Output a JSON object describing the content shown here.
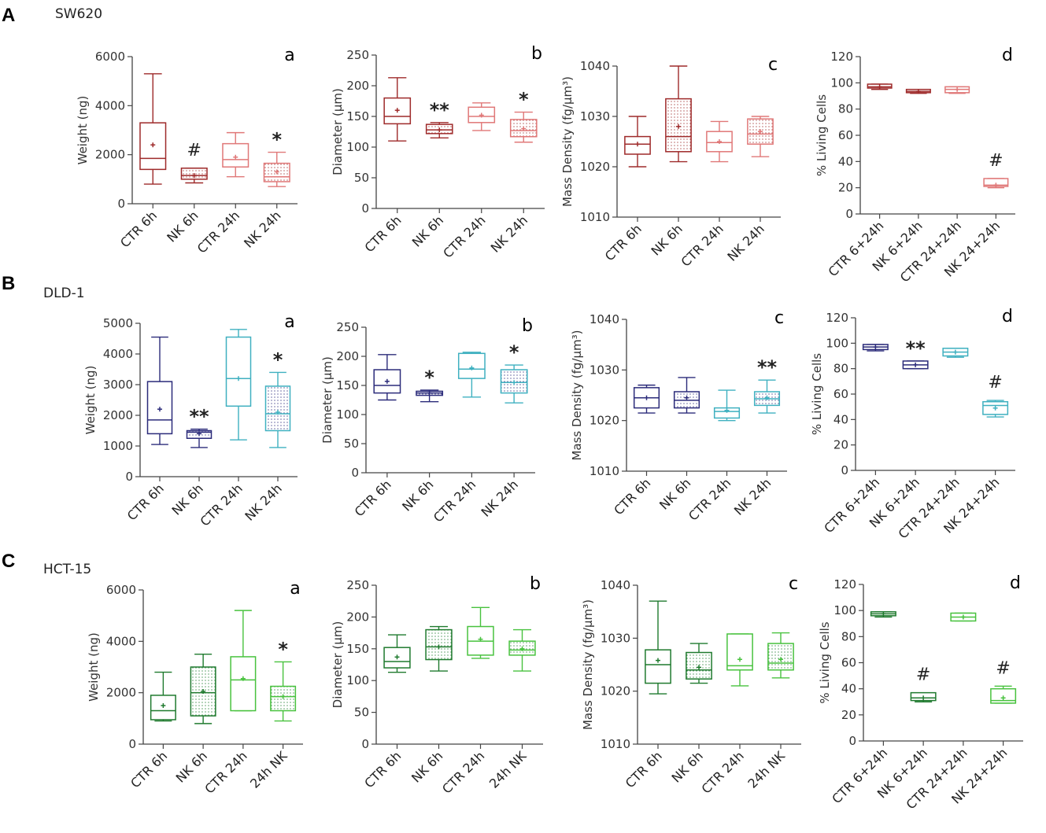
{
  "figure": {
    "rows": [
      {
        "letter": "A",
        "title": "SW620"
      },
      {
        "letter": "B",
        "title": "DLD-1"
      },
      {
        "letter": "C",
        "title": "HCT-15"
      }
    ]
  },
  "colors": {
    "A": [
      "#9e2a2a",
      "#9e2a2a",
      "#e07878",
      "#e07878"
    ],
    "B": [
      "#2b2b7a",
      "#2b2b7a",
      "#3fb0c0",
      "#3fb0c0"
    ],
    "C": [
      "#1f7a2e",
      "#1f7a2e",
      "#48c23e",
      "#48c23e"
    ]
  },
  "chart_data": [
    {
      "id": "A-a",
      "row": "A",
      "letter": "a",
      "type": "box",
      "ylabel": "Weight (ng)",
      "ylim": [
        0,
        6000
      ],
      "yticks": [
        0,
        2000,
        4000,
        6000
      ],
      "categories": [
        "CTR 6h",
        "NK 6h",
        "CTR 24h",
        "NK 24h"
      ],
      "dotted": [
        false,
        true,
        false,
        true
      ],
      "boxes": [
        {
          "min": 800,
          "q1": 1400,
          "median": 1850,
          "q3": 3300,
          "max": 5300,
          "mean": 2400
        },
        {
          "min": 850,
          "q1": 1000,
          "median": 1150,
          "q3": 1450,
          "max": 1450,
          "mean": 1150
        },
        {
          "min": 1100,
          "q1": 1500,
          "median": 1800,
          "q3": 2450,
          "max": 2900,
          "mean": 1900
        },
        {
          "min": 700,
          "q1": 900,
          "median": 1100,
          "q3": 1650,
          "max": 2100,
          "mean": 1300
        }
      ],
      "annotations": [
        "",
        "#",
        "",
        "*"
      ]
    },
    {
      "id": "A-b",
      "row": "A",
      "letter": "b",
      "type": "box",
      "ylabel": "Diameter (μm)",
      "ylim": [
        0,
        250
      ],
      "yticks": [
        0,
        50,
        100,
        150,
        200,
        250
      ],
      "categories": [
        "CTR 6h",
        "NK 6h",
        "CTR 24h",
        "NK 24h"
      ],
      "dotted": [
        false,
        true,
        false,
        true
      ],
      "boxes": [
        {
          "min": 110,
          "q1": 138,
          "median": 150,
          "q3": 180,
          "max": 213,
          "mean": 160
        },
        {
          "min": 115,
          "q1": 122,
          "median": 128,
          "q3": 137,
          "max": 140,
          "mean": 128
        },
        {
          "min": 127,
          "q1": 140,
          "median": 150,
          "q3": 165,
          "max": 172,
          "mean": 152
        },
        {
          "min": 108,
          "q1": 117,
          "median": 127,
          "q3": 145,
          "max": 157,
          "mean": 130
        }
      ],
      "annotations": [
        "",
        "**",
        "",
        "*"
      ]
    },
    {
      "id": "A-c",
      "row": "A",
      "letter": "c",
      "type": "box",
      "ylabel": "Mass Density (fg/μm³)",
      "ylim": [
        1010,
        1040
      ],
      "yticks": [
        1010,
        1020,
        1030,
        1040
      ],
      "categories": [
        "CTR 6h",
        "NK 6h",
        "CTR 24h",
        "NK 24h"
      ],
      "dotted": [
        false,
        true,
        false,
        true
      ],
      "boxes": [
        {
          "min": 1020,
          "q1": 1022.5,
          "median": 1024.5,
          "q3": 1026,
          "max": 1030,
          "mean": 1024.5
        },
        {
          "min": 1021,
          "q1": 1023,
          "median": 1026,
          "q3": 1033.5,
          "max": 1040,
          "mean": 1028
        },
        {
          "min": 1021,
          "q1": 1023,
          "median": 1024.8,
          "q3": 1027,
          "max": 1029,
          "mean": 1025
        },
        {
          "min": 1022,
          "q1": 1024.5,
          "median": 1026.5,
          "q3": 1029.5,
          "max": 1030,
          "mean": 1027
        }
      ],
      "annotations": [
        "",
        "",
        "",
        ""
      ]
    },
    {
      "id": "A-d",
      "row": "A",
      "letter": "d",
      "type": "box",
      "ylabel": "% Living Cells",
      "ylim": [
        0,
        120
      ],
      "yticks": [
        0,
        20,
        40,
        60,
        80,
        100,
        120
      ],
      "categories": [
        "CTR 6+24h",
        "NK 6+24h",
        "CTR 24+24h",
        "NK 24+24h"
      ],
      "dotted": [
        false,
        false,
        false,
        false
      ],
      "boxes": [
        {
          "min": 95,
          "q1": 96,
          "median": 97,
          "q3": 99,
          "max": 99,
          "mean": 97
        },
        {
          "min": 92,
          "q1": 92.5,
          "median": 93.5,
          "q3": 95,
          "max": 95,
          "mean": 93.5
        },
        {
          "min": 92,
          "q1": 92.5,
          "median": 95,
          "q3": 97,
          "max": 97,
          "mean": 95
        },
        {
          "min": 20,
          "q1": 21,
          "median": 22,
          "q3": 27,
          "max": 27,
          "mean": 22
        }
      ],
      "annotations": [
        "",
        "",
        "",
        "#"
      ]
    },
    {
      "id": "B-a",
      "row": "B",
      "letter": "a",
      "type": "box",
      "ylabel": "Weight (ng)",
      "ylim": [
        0,
        5000
      ],
      "yticks": [
        0,
        1000,
        2000,
        3000,
        4000,
        5000
      ],
      "categories": [
        "CTR 6h",
        "NK 6h",
        "CTR 24h",
        "NK 24h"
      ],
      "dotted": [
        false,
        true,
        false,
        true
      ],
      "boxes": [
        {
          "min": 1050,
          "q1": 1400,
          "median": 1850,
          "q3": 3100,
          "max": 4550,
          "mean": 2200
        },
        {
          "min": 950,
          "q1": 1250,
          "median": 1450,
          "q3": 1500,
          "max": 1550,
          "mean": 1400
        },
        {
          "min": 1200,
          "q1": 2300,
          "median": 3200,
          "q3": 4550,
          "max": 4800,
          "mean": 3200
        },
        {
          "min": 950,
          "q1": 1500,
          "median": 2050,
          "q3": 2950,
          "max": 3400,
          "mean": 2100
        }
      ],
      "annotations": [
        "",
        "**",
        "",
        "*"
      ]
    },
    {
      "id": "B-b",
      "row": "B",
      "letter": "b",
      "type": "box",
      "ylabel": "Diameter (μm)",
      "ylim": [
        0,
        250
      ],
      "yticks": [
        0,
        50,
        100,
        150,
        200,
        250
      ],
      "categories": [
        "CTR 6h",
        "NK 6h",
        "CTR 24h",
        "NK 24h"
      ],
      "dotted": [
        false,
        true,
        false,
        true
      ],
      "boxes": [
        {
          "min": 125,
          "q1": 137,
          "median": 150,
          "q3": 177,
          "max": 203,
          "mean": 157
        },
        {
          "min": 122,
          "q1": 133,
          "median": 137,
          "q3": 140,
          "max": 142,
          "mean": 137
        },
        {
          "min": 130,
          "q1": 162,
          "median": 178,
          "q3": 205,
          "max": 207,
          "mean": 180
        },
        {
          "min": 120,
          "q1": 137,
          "median": 155,
          "q3": 177,
          "max": 185,
          "mean": 155
        }
      ],
      "annotations": [
        "",
        "*",
        "",
        "*"
      ]
    },
    {
      "id": "B-c",
      "row": "B",
      "letter": "c",
      "type": "box",
      "ylabel": "Mass Density (fg/μm³)",
      "ylim": [
        1010,
        1040
      ],
      "yticks": [
        1010,
        1020,
        1030,
        1040
      ],
      "categories": [
        "CTR 6h",
        "NK 6h",
        "CTR 24h",
        "NK 24h"
      ],
      "dotted": [
        false,
        true,
        false,
        true
      ],
      "boxes": [
        {
          "min": 1021.5,
          "q1": 1022.5,
          "median": 1024.5,
          "q3": 1026.5,
          "max": 1027,
          "mean": 1024.5
        },
        {
          "min": 1021.5,
          "q1": 1022.5,
          "median": 1024,
          "q3": 1025.7,
          "max": 1028.5,
          "mean": 1024.5
        },
        {
          "min": 1020,
          "q1": 1020.5,
          "median": 1021.8,
          "q3": 1022.5,
          "max": 1026,
          "mean": 1022
        },
        {
          "min": 1021.5,
          "q1": 1023,
          "median": 1024.3,
          "q3": 1025.7,
          "max": 1028,
          "mean": 1024.5
        }
      ],
      "annotations": [
        "",
        "",
        "",
        "**"
      ]
    },
    {
      "id": "B-d",
      "row": "B",
      "letter": "d",
      "type": "box",
      "ylabel": "% Living Cells",
      "ylim": [
        0,
        120
      ],
      "yticks": [
        0,
        20,
        40,
        60,
        80,
        100,
        120
      ],
      "categories": [
        "CTR 6+24h",
        "NK 6+24h",
        "CTR 24+24h",
        "NK 24+24h"
      ],
      "dotted": [
        false,
        false,
        false,
        false
      ],
      "boxes": [
        {
          "min": 94,
          "q1": 95,
          "median": 97,
          "q3": 99,
          "max": 99,
          "mean": 97
        },
        {
          "min": 80,
          "q1": 80,
          "median": 83,
          "q3": 86,
          "max": 86,
          "mean": 83
        },
        {
          "min": 89,
          "q1": 90,
          "median": 93,
          "q3": 96,
          "max": 96,
          "mean": 93
        },
        {
          "min": 42,
          "q1": 44,
          "median": 51,
          "q3": 54,
          "max": 55,
          "mean": 49
        }
      ],
      "annotations": [
        "",
        "**",
        "",
        "#"
      ]
    },
    {
      "id": "C-a",
      "row": "C",
      "letter": "a",
      "type": "box",
      "ylabel": "Weight (ng)",
      "ylim": [
        0,
        6000
      ],
      "yticks": [
        0,
        2000,
        4000,
        6000
      ],
      "categories": [
        "CTR 6h",
        "NK 6h",
        "CTR 24h",
        "24h NK"
      ],
      "dotted": [
        false,
        true,
        false,
        true
      ],
      "boxes": [
        {
          "min": 900,
          "q1": 950,
          "median": 1300,
          "q3": 1900,
          "max": 2800,
          "mean": 1500
        },
        {
          "min": 800,
          "q1": 1100,
          "median": 2000,
          "q3": 3000,
          "max": 3500,
          "mean": 2050
        },
        {
          "min": 1300,
          "q1": 1300,
          "median": 2500,
          "q3": 3400,
          "max": 5200,
          "mean": 2550
        },
        {
          "min": 900,
          "q1": 1300,
          "median": 1850,
          "q3": 2250,
          "max": 3200,
          "mean": 1850
        }
      ],
      "annotations": [
        "",
        "",
        "",
        "*"
      ]
    },
    {
      "id": "C-b",
      "row": "C",
      "letter": "b",
      "type": "box",
      "ylabel": "Diameter (μm)",
      "ylim": [
        0,
        250
      ],
      "yticks": [
        0,
        50,
        100,
        150,
        200,
        250
      ],
      "categories": [
        "CTR 6h",
        "NK 6h",
        "CTR 24h",
        "24h NK"
      ],
      "dotted": [
        false,
        true,
        false,
        true
      ],
      "boxes": [
        {
          "min": 113,
          "q1": 120,
          "median": 130,
          "q3": 152,
          "max": 172,
          "mean": 137
        },
        {
          "min": 115,
          "q1": 133,
          "median": 153,
          "q3": 180,
          "max": 185,
          "mean": 153
        },
        {
          "min": 135,
          "q1": 140,
          "median": 162,
          "q3": 185,
          "max": 215,
          "mean": 165
        },
        {
          "min": 115,
          "q1": 140,
          "median": 148,
          "q3": 162,
          "max": 180,
          "mean": 150
        }
      ],
      "annotations": [
        "",
        "",
        "",
        ""
      ]
    },
    {
      "id": "C-c",
      "row": "C",
      "letter": "c",
      "type": "box",
      "ylabel": "Mass Density (fg/μm³)",
      "ylim": [
        1010,
        1040
      ],
      "yticks": [
        1010,
        1020,
        1030,
        1040
      ],
      "categories": [
        "CTR 6h",
        "NK 6h",
        "CTR 24h",
        "24h NK"
      ],
      "dotted": [
        false,
        true,
        false,
        true
      ],
      "boxes": [
        {
          "min": 1019.5,
          "q1": 1021.5,
          "median": 1025,
          "q3": 1027.8,
          "max": 1037,
          "mean": 1025.8
        },
        {
          "min": 1021.5,
          "q1": 1022.3,
          "median": 1024,
          "q3": 1027.3,
          "max": 1029,
          "mean": 1024.5
        },
        {
          "min": 1021,
          "q1": 1024,
          "median": 1024.8,
          "q3": 1030.8,
          "max": 1030.8,
          "mean": 1026
        },
        {
          "min": 1022.5,
          "q1": 1024,
          "median": 1025.3,
          "q3": 1029,
          "max": 1031,
          "mean": 1026
        }
      ],
      "annotations": [
        "",
        "",
        "",
        ""
      ]
    },
    {
      "id": "C-d",
      "row": "C",
      "letter": "d",
      "type": "box",
      "ylabel": "% Living Cells",
      "ylim": [
        0,
        120
      ],
      "yticks": [
        0,
        20,
        40,
        60,
        80,
        100,
        120
      ],
      "categories": [
        "CTR 6+24h",
        "NK 6+24h",
        "CTR 24+24h",
        "NK 24+24h"
      ],
      "dotted": [
        false,
        false,
        false,
        false
      ],
      "boxes": [
        {
          "min": 95,
          "q1": 96,
          "median": 97.5,
          "q3": 99,
          "max": 99,
          "mean": 97.5
        },
        {
          "min": 30,
          "q1": 31,
          "median": 33,
          "q3": 37,
          "max": 37,
          "mean": 33
        },
        {
          "min": 92,
          "q1": 92,
          "median": 95,
          "q3": 98,
          "max": 98,
          "mean": 95
        },
        {
          "min": 29,
          "q1": 29,
          "median": 31,
          "q3": 40,
          "max": 42,
          "mean": 33
        }
      ],
      "annotations": [
        "",
        "#",
        "",
        "#"
      ]
    }
  ]
}
